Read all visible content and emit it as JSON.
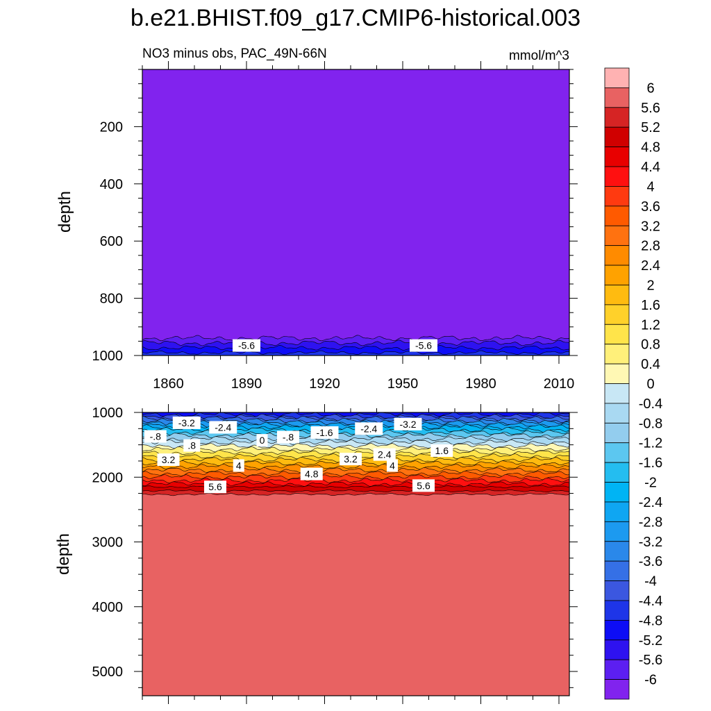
{
  "figure": {
    "title": "b.e21.BHIST.f09_g17.CMIP6-historical.003"
  },
  "colors": {
    "levels": [
      -6,
      -5.6,
      -5.2,
      -4.8,
      -4.4,
      -4,
      -3.6,
      -3.2,
      -2.8,
      -2.4,
      -2,
      -1.6,
      -1.2,
      -0.8,
      -0.4,
      0,
      0.4,
      0.8,
      1.2,
      1.6,
      2,
      2.4,
      2.8,
      3.2,
      3.6,
      4,
      4.4,
      4.8,
      5.2,
      5.6,
      6
    ],
    "fills": [
      "#8123ee",
      "#5c1ff1",
      "#2e12f0",
      "#0d0df6",
      "#1e35e8",
      "#3b57e0",
      "#3570e6",
      "#2a88ea",
      "#1c9af0",
      "#0fa6f2",
      "#00b4f4",
      "#24bdf0",
      "#5cc7f0",
      "#93cdee",
      "#a9d9f2",
      "#c8e7f5",
      "#fff8b4",
      "#fff07a",
      "#ffe44a",
      "#ffd12a",
      "#ffbb10",
      "#ffa200",
      "#ff8b00",
      "#ff7210",
      "#ff5a00",
      "#ff3a10",
      "#ff1010",
      "#e80000",
      "#d00000",
      "#d62424",
      "#e86262",
      "#ffb2b2"
    ]
  },
  "chart_data": [
    {
      "type": "heatmap",
      "subtitle": "NO3 minus obs, PAC_49N-66N",
      "units": "mmol/m^3",
      "ylabel": "depth",
      "x_range": [
        1850,
        2014
      ],
      "x_ticks": [
        "1860",
        "1890",
        "1920",
        "1950",
        "1980",
        "2010"
      ],
      "y_range": [
        0,
        1000
      ],
      "y_reversed": true,
      "y_ticks": [
        "200",
        "400",
        "600",
        "800",
        "1000"
      ],
      "contour_labels": [
        {
          "text": "-5.6",
          "x": 1890,
          "y": 965
        },
        {
          "text": "-5.6",
          "x": 1958,
          "y": 965
        }
      ]
    },
    {
      "type": "heatmap",
      "ylabel": "depth",
      "x_range": [
        1850,
        2014
      ],
      "y_range": [
        1000,
        5375
      ],
      "y_reversed": true,
      "y_ticks": [
        "1000",
        "2000",
        "3000",
        "4000",
        "5000"
      ],
      "contour_labels": [
        {
          "text": "-3.2",
          "x": 1867,
          "y": 1160
        },
        {
          "text": "-2.4",
          "x": 1881,
          "y": 1230
        },
        {
          "text": "-.8",
          "x": 1855,
          "y": 1370
        },
        {
          "text": ".8",
          "x": 1869,
          "y": 1510
        },
        {
          "text": "0",
          "x": 1896,
          "y": 1430
        },
        {
          "text": "-.8",
          "x": 1906,
          "y": 1380
        },
        {
          "text": "-1.6",
          "x": 1920,
          "y": 1310
        },
        {
          "text": "-2.4",
          "x": 1937,
          "y": 1250
        },
        {
          "text": "-3.2",
          "x": 1952,
          "y": 1180
        },
        {
          "text": "1.6",
          "x": 1965,
          "y": 1590
        },
        {
          "text": "2.4",
          "x": 1943,
          "y": 1650
        },
        {
          "text": "3.2",
          "x": 1930,
          "y": 1720
        },
        {
          "text": "3.2",
          "x": 1860,
          "y": 1730
        },
        {
          "text": "4",
          "x": 1887,
          "y": 1820
        },
        {
          "text": "4",
          "x": 1946,
          "y": 1820
        },
        {
          "text": "4.8",
          "x": 1915,
          "y": 1950
        },
        {
          "text": "5.6",
          "x": 1878,
          "y": 2150
        },
        {
          "text": "5.6",
          "x": 1958,
          "y": 2130
        }
      ]
    }
  ],
  "colorbar": {
    "labels": [
      "6",
      "5.6",
      "5.2",
      "4.8",
      "4.4",
      "4",
      "3.6",
      "3.2",
      "2.8",
      "2.4",
      "2",
      "1.6",
      "1.2",
      "0.8",
      "0.4",
      "0",
      "-0.4",
      "-0.8",
      "-1.2",
      "-1.6",
      "-2",
      "-2.4",
      "-2.8",
      "-3.2",
      "-3.6",
      "-4",
      "-4.4",
      "-4.8",
      "-5.2",
      "-5.6",
      "-6"
    ]
  }
}
